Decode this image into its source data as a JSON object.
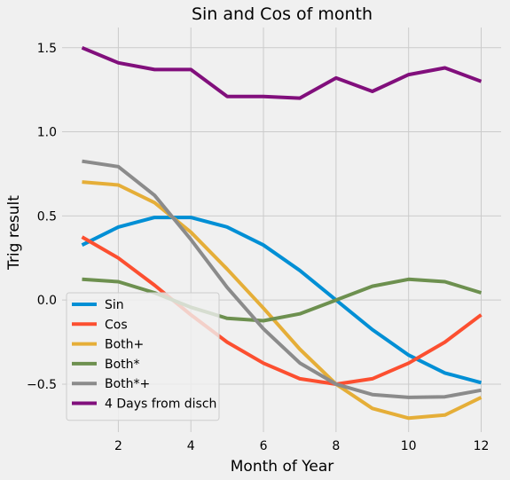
{
  "chart_data": {
    "type": "line",
    "title": "Sin and Cos of month",
    "xlabel": "Month of Year",
    "ylabel": "Trig result",
    "xlim": [
      0.45,
      12.55
    ],
    "ylim": [
      -0.785,
      1.62
    ],
    "xticks": [
      2,
      4,
      6,
      8,
      10,
      12
    ],
    "xtick_labels": [
      "2",
      "4",
      "6",
      "8",
      "10",
      "12"
    ],
    "yticks": [
      -0.5,
      0.0,
      0.5,
      1.0,
      1.5
    ],
    "ytick_labels": [
      "−0.5",
      "0.0",
      "0.5",
      "1.0",
      "1.5"
    ],
    "grid": true,
    "legend_position": "lower-left",
    "x": [
      1,
      2,
      3,
      4,
      5,
      6,
      7,
      8,
      9,
      10,
      11,
      12
    ],
    "series": [
      {
        "name": "Sin",
        "color": "#008fd5",
        "values": [
          0.327,
          0.434,
          0.491,
          0.491,
          0.434,
          0.327,
          0.176,
          0.0,
          -0.176,
          -0.327,
          -0.434,
          -0.491
        ]
      },
      {
        "name": "Cos",
        "color": "#fc4f30",
        "values": [
          0.375,
          0.25,
          0.088,
          -0.088,
          -0.25,
          -0.375,
          -0.468,
          -0.5,
          -0.468,
          -0.375,
          -0.25,
          -0.088
        ]
      },
      {
        "name": "Both+",
        "color": "#e5ae38",
        "values": [
          0.702,
          0.684,
          0.579,
          0.403,
          0.184,
          -0.048,
          -0.292,
          -0.5,
          -0.644,
          -0.702,
          -0.684,
          -0.579
        ]
      },
      {
        "name": "Both*",
        "color": "#6d904f",
        "values": [
          0.123,
          0.109,
          0.043,
          -0.043,
          -0.109,
          -0.123,
          -0.082,
          0.0,
          0.082,
          0.123,
          0.109,
          0.043
        ]
      },
      {
        "name": "Both*+",
        "color": "#8b8b8b",
        "values": [
          0.825,
          0.793,
          0.622,
          0.36,
          0.075,
          -0.171,
          -0.374,
          -0.5,
          -0.562,
          -0.579,
          -0.575,
          -0.536
        ]
      },
      {
        "name": "4 Days from disch",
        "color": "#810f7c",
        "values": [
          1.5,
          1.41,
          1.37,
          1.37,
          1.21,
          1.21,
          1.2,
          1.32,
          1.24,
          1.34,
          1.38,
          1.3
        ]
      }
    ]
  }
}
